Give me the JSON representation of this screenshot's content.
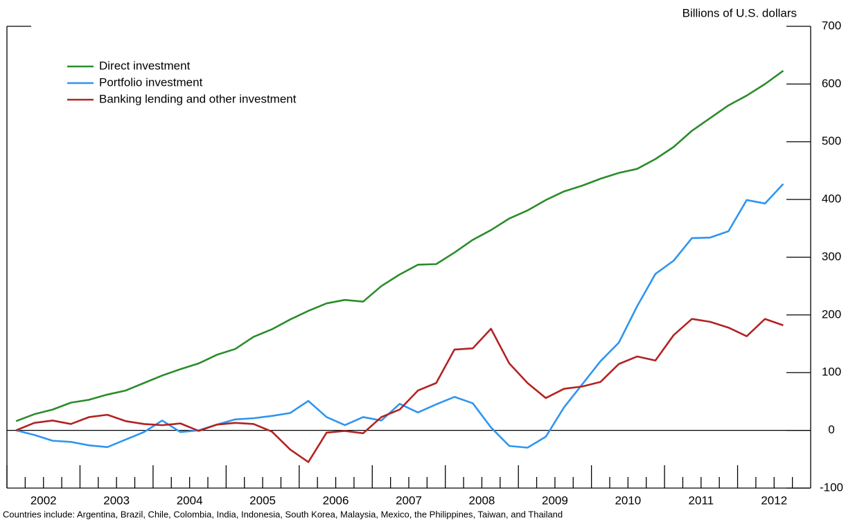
{
  "chart_data": {
    "type": "line",
    "y_axis_label": "Billions of U.S. dollars",
    "note": "Countries include: Argentina, Brazil, Chile, Colombia, India, Indonesia, South Korea, Malaysia, Mexico, the Philippines, Taiwan, and Thailand",
    "x": [
      2002.125,
      2002.375,
      2002.625,
      2002.875,
      2003.125,
      2003.375,
      2003.625,
      2003.875,
      2004.125,
      2004.375,
      2004.625,
      2004.875,
      2005.125,
      2005.375,
      2005.625,
      2005.875,
      2006.125,
      2006.375,
      2006.625,
      2006.875,
      2007.125,
      2007.375,
      2007.625,
      2007.875,
      2008.125,
      2008.375,
      2008.625,
      2008.875,
      2009.125,
      2009.375,
      2009.625,
      2009.875,
      2010.125,
      2010.375,
      2010.625,
      2010.875,
      2011.125,
      2011.375,
      2011.625,
      2011.875,
      2012.125,
      2012.375,
      2012.625
    ],
    "xlim": [
      2002,
      2013
    ],
    "xticks": [
      2002,
      2003,
      2004,
      2005,
      2006,
      2007,
      2008,
      2009,
      2010,
      2011,
      2012
    ],
    "ylim": [
      -100,
      700
    ],
    "yticks": [
      -100,
      0,
      100,
      200,
      300,
      400,
      500,
      600,
      700
    ],
    "series": [
      {
        "name": "Direct investment",
        "color": "#2a8c2a",
        "values": [
          16,
          28,
          36,
          48,
          53,
          62,
          69,
          82,
          95,
          106,
          116,
          131,
          141,
          162,
          175,
          192,
          207,
          220,
          226,
          223,
          250,
          270,
          287,
          288,
          308,
          330,
          347,
          367,
          381,
          399,
          414,
          424,
          436,
          446,
          453,
          470,
          491,
          519,
          541,
          563,
          580,
          600,
          623
        ]
      },
      {
        "name": "Portfolio investment",
        "color": "#2e95f0",
        "values": [
          0,
          -8,
          -18,
          -20,
          -26,
          -29,
          -16,
          -3,
          17,
          -3,
          0,
          10,
          19,
          21,
          25,
          30,
          51,
          23,
          9,
          23,
          17,
          46,
          31,
          45,
          58,
          47,
          5,
          -27,
          -30,
          -11,
          40,
          80,
          120,
          152,
          215,
          271,
          294,
          333,
          334,
          345,
          399,
          393,
          427
        ]
      },
      {
        "name": "Banking lending and other investment",
        "color": "#b22222",
        "values": [
          0,
          13,
          17,
          11,
          23,
          27,
          16,
          11,
          9,
          12,
          -1,
          10,
          13,
          11,
          -2,
          -33,
          -55,
          -4,
          -1,
          -5,
          23,
          36,
          69,
          82,
          140,
          142,
          176,
          116,
          82,
          56,
          72,
          76,
          84,
          115,
          128,
          121,
          165,
          193,
          188,
          178,
          163,
          193,
          182
        ]
      }
    ]
  }
}
